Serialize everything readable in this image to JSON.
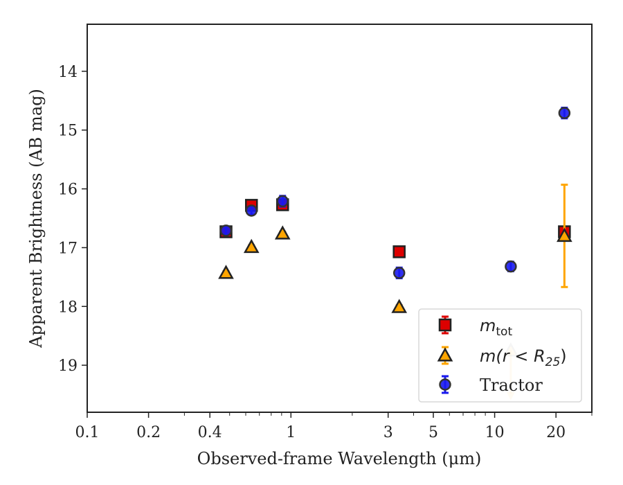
{
  "chart_data": {
    "type": "scatter",
    "title": "",
    "xlabel": "Observed-frame Wavelength (μm)",
    "ylabel": "Apparent Brightness (AB mag)",
    "xscale": "log",
    "xlim": [
      0.1,
      30
    ],
    "ylim": [
      19.8,
      13.2
    ],
    "y_inverted": true,
    "xticks": [
      {
        "value": 0.1,
        "label": "0.1"
      },
      {
        "value": 0.2,
        "label": "0.2"
      },
      {
        "value": 0.4,
        "label": "0.4"
      },
      {
        "value": 1,
        "label": "1"
      },
      {
        "value": 3,
        "label": "3"
      },
      {
        "value": 5,
        "label": "5"
      },
      {
        "value": 10,
        "label": "10"
      },
      {
        "value": 20,
        "label": "20"
      }
    ],
    "yticks": [
      {
        "value": 14,
        "label": "14"
      },
      {
        "value": 15,
        "label": "15"
      },
      {
        "value": 16,
        "label": "16"
      },
      {
        "value": 17,
        "label": "17"
      },
      {
        "value": 18,
        "label": "18"
      },
      {
        "value": 19,
        "label": "19"
      }
    ],
    "legend_position": "lower right",
    "series": [
      {
        "name": "m_tot",
        "label_base": "m",
        "label_sub": "tot",
        "marker": "square",
        "color": "#dd0000",
        "errcolor": "#dd0000",
        "points": [
          {
            "x": 0.48,
            "y": 16.73,
            "err": 0.05
          },
          {
            "x": 0.64,
            "y": 16.28,
            "err": 0.05
          },
          {
            "x": 0.91,
            "y": 16.27,
            "err": 0.08
          },
          {
            "x": 3.4,
            "y": 17.07,
            "err": 0.04
          },
          {
            "x": 22,
            "y": 16.73,
            "err": 0.05
          }
        ]
      },
      {
        "name": "m(r<R_25)",
        "label_base": "m(r < R",
        "label_sub": "25",
        "label_tail": ")",
        "marker": "triangle",
        "color": "#ffa500",
        "errcolor": "#ffa500",
        "points": [
          {
            "x": 0.48,
            "y": 17.43,
            "err": 0.03
          },
          {
            "x": 0.64,
            "y": 16.99,
            "err": 0.03
          },
          {
            "x": 0.91,
            "y": 16.76,
            "err": 0.03
          },
          {
            "x": 3.4,
            "y": 18.01,
            "err": 0.03
          },
          {
            "x": 22,
            "y": 16.8,
            "err": 0.87
          }
        ]
      },
      {
        "name": "Tractor",
        "marker": "circle",
        "color": "#1a1aee",
        "errcolor": "#1a1aee",
        "points": [
          {
            "x": 0.48,
            "y": 16.71,
            "err": 0.07
          },
          {
            "x": 0.64,
            "y": 16.37,
            "err": 0.07
          },
          {
            "x": 0.91,
            "y": 16.21,
            "err": 0.09
          },
          {
            "x": 3.4,
            "y": 17.43,
            "err": 0.09
          },
          {
            "x": 12,
            "y": 17.32,
            "err": 0.08
          },
          {
            "x": 22,
            "y": 14.71,
            "err": 0.09
          }
        ]
      }
    ],
    "faint_markers": [
      {
        "marker": "triangle",
        "x": 12,
        "y": 18.75,
        "upper_limit_arrow": true
      }
    ]
  }
}
